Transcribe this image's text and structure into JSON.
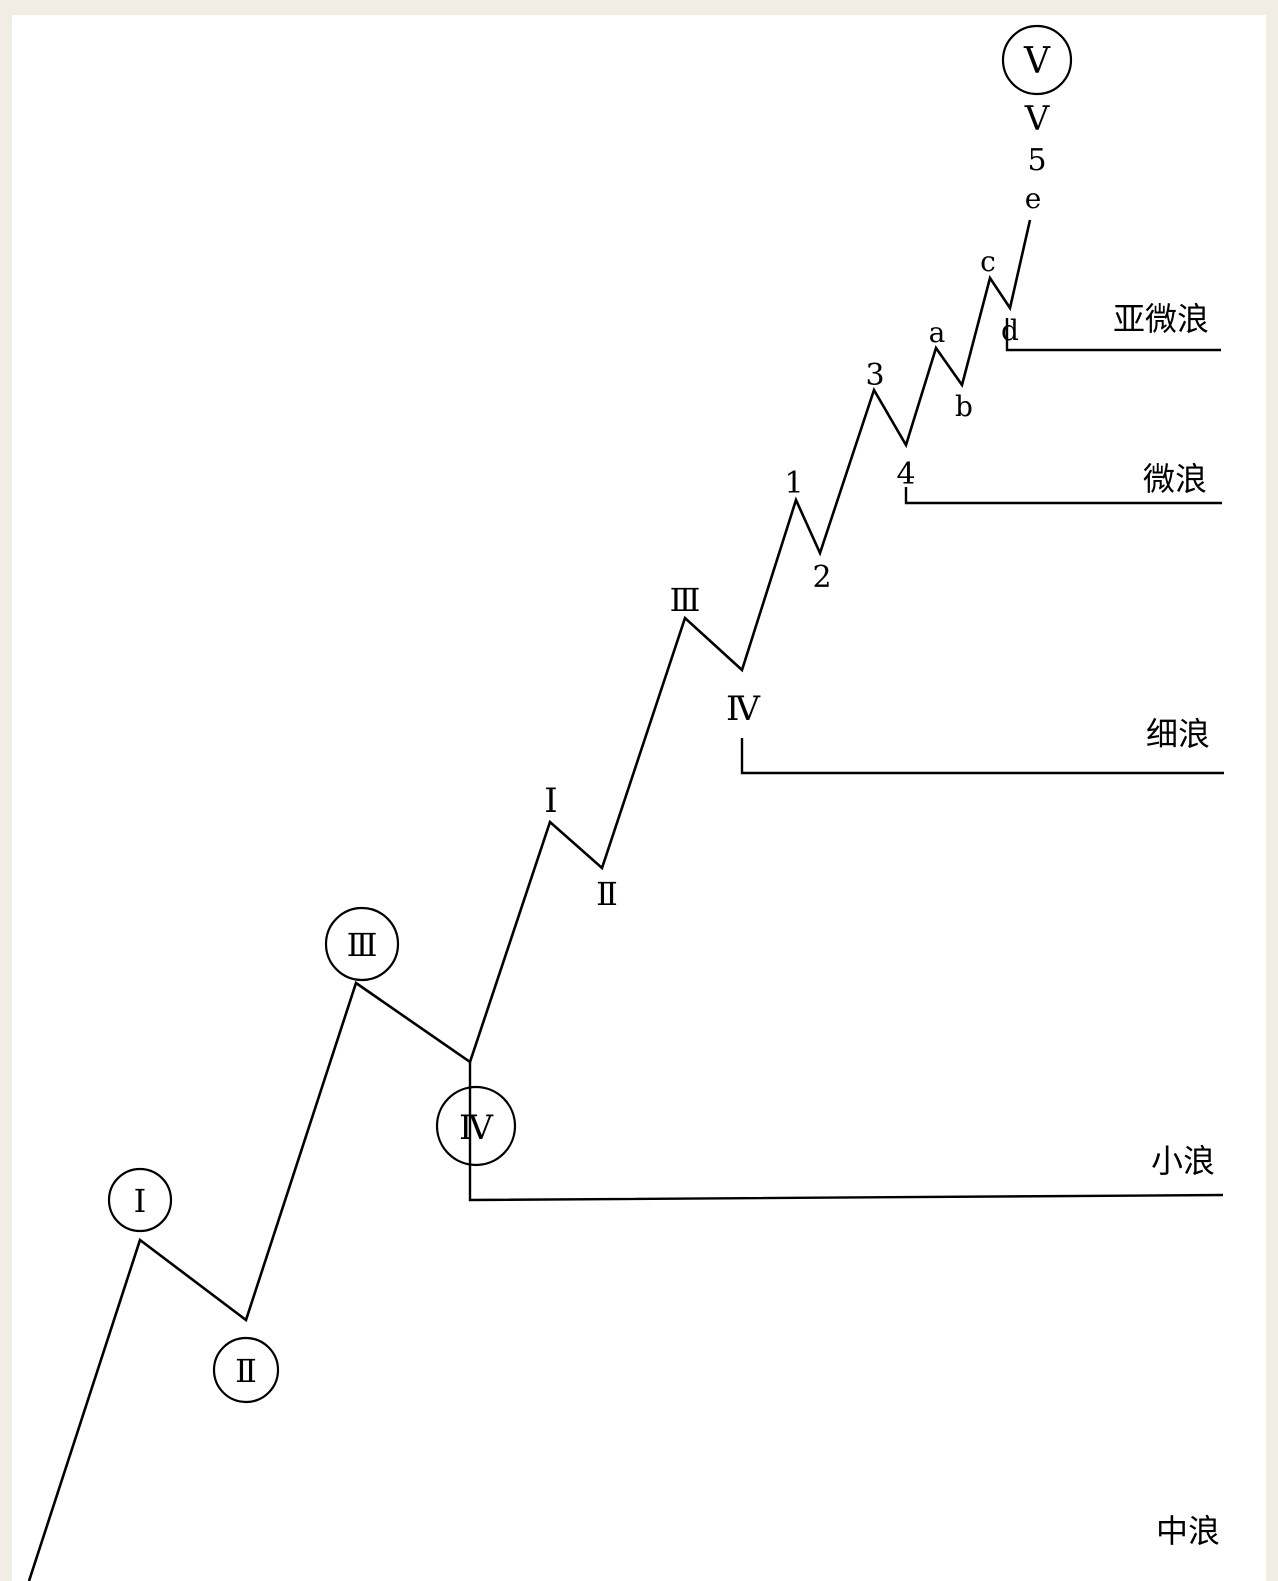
{
  "tiers": {
    "subminuette": "亚微浪",
    "minuette": "微浪",
    "minute": "细浪",
    "minor": "小浪",
    "intermediate": "中浪"
  },
  "labels": {
    "circled": {
      "I": "Ⅰ",
      "II": "Ⅱ",
      "III": "Ⅲ",
      "IV": "Ⅳ",
      "V": "V"
    },
    "roman": {
      "I": "I",
      "II": "Ⅱ",
      "III": "Ⅲ",
      "IV": "Ⅳ",
      "V": "V"
    },
    "arabic": {
      "1": "1",
      "2": "2",
      "3": "3",
      "4": "4",
      "5": "5"
    },
    "letters": {
      "a": "a",
      "b": "b",
      "c": "c",
      "d": "d",
      "e": "e"
    }
  }
}
